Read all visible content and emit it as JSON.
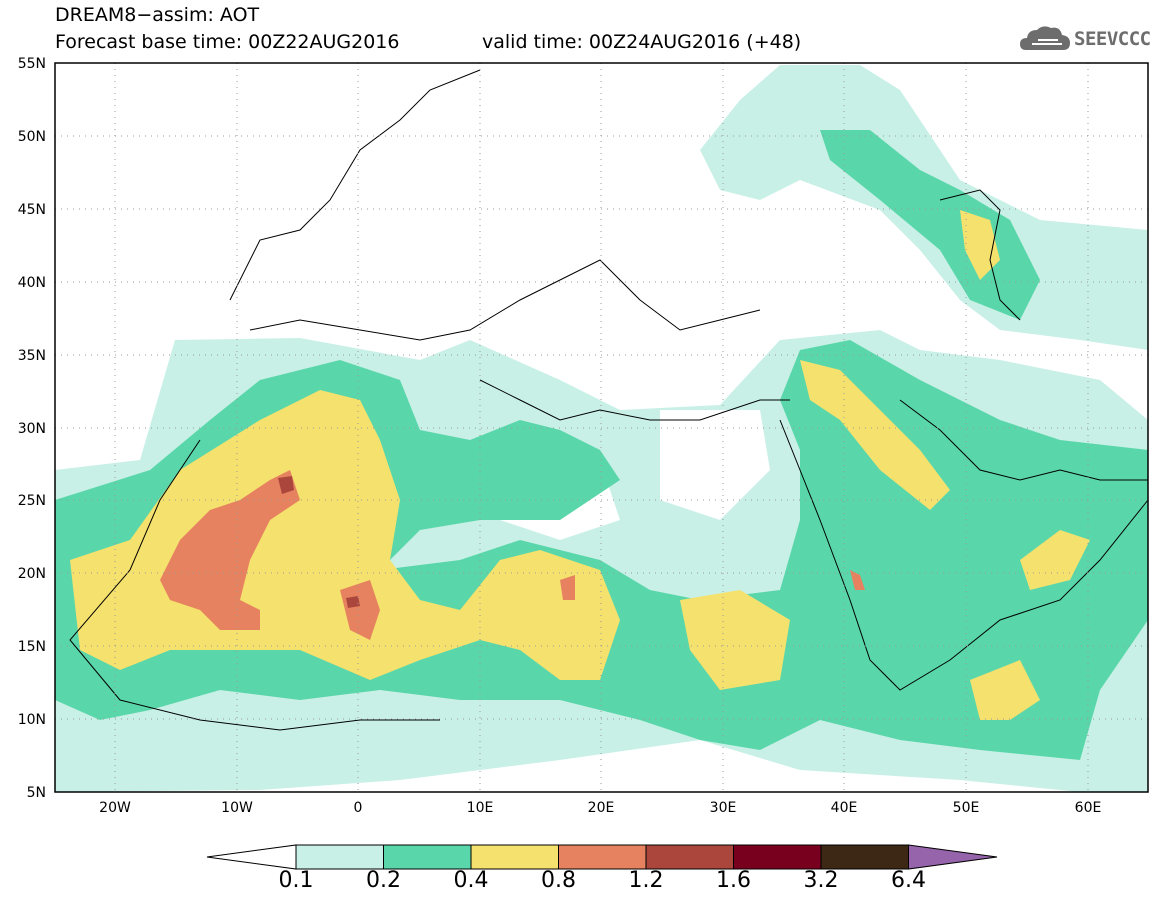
{
  "title": {
    "line1": "DREAM8−assim: AOT",
    "base_time": "Forecast base time: 00Z22AUG2016",
    "valid_time": "valid time: 00Z24AUG2016 (+48)"
  },
  "logo": {
    "text": "SEEVCCC",
    "icon": "cloud-icon"
  },
  "map": {
    "projection": "lat-lon",
    "lon_range": [
      -25,
      65
    ],
    "lat_range": [
      5,
      55
    ],
    "lat_labels": [
      "55N",
      "50N",
      "45N",
      "40N",
      "35N",
      "30N",
      "25N",
      "20N",
      "15N",
      "10N",
      "5N"
    ],
    "lon_labels": [
      "20W",
      "10W",
      "0",
      "10E",
      "20E",
      "30E",
      "40E",
      "50E",
      "60E"
    ],
    "gridlines": "dotted"
  },
  "colorbar": {
    "labels": [
      "0.1",
      "0.2",
      "0.4",
      "0.8",
      "1.2",
      "1.6",
      "3.2",
      "6.4"
    ],
    "colors": [
      "#ffffff",
      "#c8f0e6",
      "#5ad7aa",
      "#f5e16e",
      "#e6825f",
      "#aa463c",
      "#78001e",
      "#3c2814",
      "#9664aa"
    ]
  }
}
